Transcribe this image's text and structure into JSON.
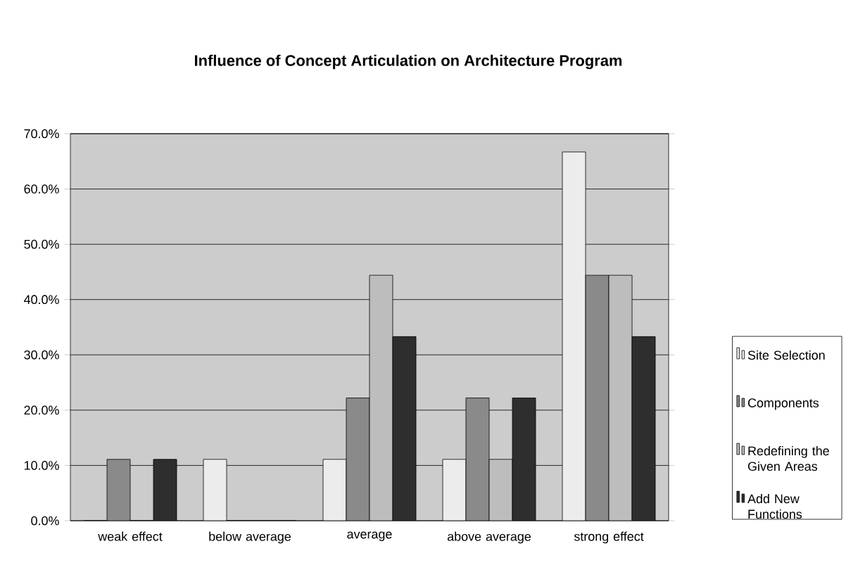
{
  "chart_data": {
    "type": "bar",
    "title": "Influence of Concept Articulation on Architecture Program",
    "categories": [
      "weak effect",
      "below average",
      "average",
      "above average",
      "strong effect"
    ],
    "series": [
      {
        "name": "Site Selection",
        "color": "#ececec",
        "values": [
          0,
          11.1,
          11.1,
          11.1,
          66.7
        ]
      },
      {
        "name": "Components",
        "color": "#8a8a8a",
        "values": [
          11.1,
          0,
          22.2,
          22.2,
          44.4
        ]
      },
      {
        "name": "Redefining the Given Areas",
        "color": "#bdbdbd",
        "values": [
          0,
          0,
          44.4,
          11.1,
          44.4
        ]
      },
      {
        "name": "Add New Functions",
        "color": "#2e2e2e",
        "values": [
          11.1,
          0,
          33.3,
          22.2,
          33.3
        ]
      }
    ],
    "ylim": [
      0,
      70
    ],
    "yticks": [
      {
        "value": 0,
        "label": "0.0%"
      },
      {
        "value": 10,
        "label": "10.0%"
      },
      {
        "value": 20,
        "label": "20.0%"
      },
      {
        "value": 30,
        "label": "30.0%"
      },
      {
        "value": 40,
        "label": "40.0%"
      },
      {
        "value": 50,
        "label": "50.0%"
      },
      {
        "value": 60,
        "label": "60.0%"
      },
      {
        "value": 70,
        "label": "70.0%"
      }
    ],
    "grid": "y",
    "legend": "right"
  }
}
